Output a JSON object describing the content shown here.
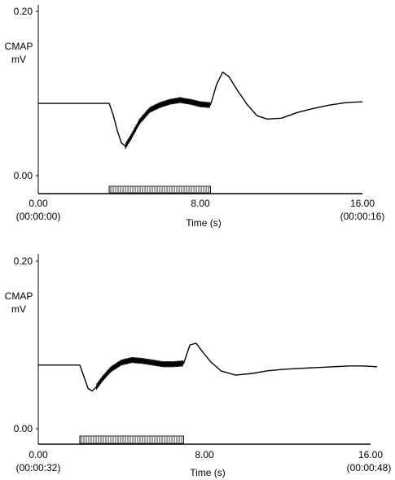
{
  "chart_data": [
    {
      "type": "line",
      "ylabel": "CMAP",
      "yunit": "mV",
      "xlabel": "Time (s)",
      "xlim": [
        0,
        16
      ],
      "ylim": [
        0,
        0.2
      ],
      "yticks": [
        "0.20",
        "0.00"
      ],
      "xticks": [
        {
          "value": 0,
          "label": "0.00",
          "sublabel": "(00:00:00)"
        },
        {
          "value": 8,
          "label": "8.00",
          "sublabel": ""
        },
        {
          "value": 16,
          "label": "16.00",
          "sublabel": "(00:00:16)"
        }
      ],
      "stimulus": {
        "start": 3.5,
        "end": 8.5
      },
      "series": [
        {
          "x": [
            0,
            1,
            2,
            3,
            3.5,
            3.7,
            3.9,
            4.1,
            4.3,
            4.6,
            5.0,
            5.5,
            6.0,
            6.5,
            7.0,
            7.5,
            8.0,
            8.5,
            8.6,
            8.8,
            9.1,
            9.4,
            9.8,
            10.3,
            10.8,
            11.3,
            12.0,
            12.8,
            13.6,
            14.4,
            15.2,
            16.0
          ],
          "y": [
            0.088,
            0.088,
            0.088,
            0.088,
            0.088,
            0.074,
            0.055,
            0.04,
            0.036,
            0.048,
            0.066,
            0.08,
            0.086,
            0.09,
            0.092,
            0.09,
            0.087,
            0.086,
            0.094,
            0.111,
            0.126,
            0.121,
            0.105,
            0.087,
            0.073,
            0.069,
            0.07,
            0.077,
            0.082,
            0.086,
            0.089,
            0.09
          ],
          "noise_from": 4.3,
          "noise_to": 8.5
        }
      ]
    },
    {
      "type": "line",
      "ylabel": "CMAP",
      "yunit": "mV",
      "xlabel": "Time (s)",
      "xlim": [
        0,
        16
      ],
      "ylim": [
        0,
        0.2
      ],
      "yticks": [
        "0.20",
        "0.00"
      ],
      "xticks": [
        {
          "value": 0,
          "label": "0.00",
          "sublabel": "(00:00:32)"
        },
        {
          "value": 8,
          "label": "8.00",
          "sublabel": ""
        },
        {
          "value": 16,
          "label": "16.00",
          "sublabel": "(00:00:48)"
        }
      ],
      "stimulus": {
        "start": 2.0,
        "end": 7.0
      },
      "series": [
        {
          "x": [
            0,
            1,
            2,
            2.2,
            2.4,
            2.6,
            2.8,
            3.1,
            3.5,
            4.0,
            4.5,
            5.0,
            5.5,
            6.0,
            6.5,
            7.0,
            7.1,
            7.3,
            7.6,
            7.9,
            8.3,
            8.8,
            9.5,
            10.3,
            11.0,
            11.8,
            12.6,
            13.4,
            14.2,
            15.0,
            15.6,
            16.0
          ],
          "y": [
            0.076,
            0.076,
            0.076,
            0.062,
            0.048,
            0.045,
            0.05,
            0.06,
            0.071,
            0.079,
            0.082,
            0.081,
            0.079,
            0.077,
            0.077,
            0.078,
            0.085,
            0.1,
            0.102,
            0.092,
            0.08,
            0.069,
            0.064,
            0.066,
            0.069,
            0.071,
            0.072,
            0.073,
            0.074,
            0.075,
            0.075,
            0.074
          ],
          "noise_from": 2.8,
          "noise_to": 7.0
        }
      ]
    }
  ]
}
